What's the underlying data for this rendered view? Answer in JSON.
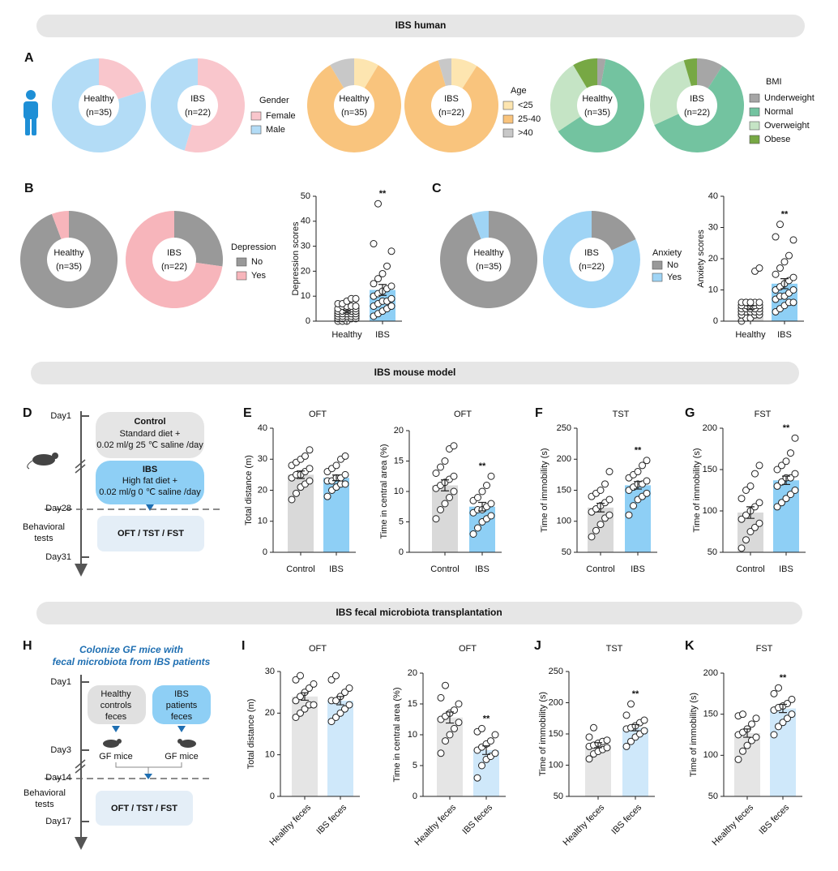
{
  "banners": [
    "IBS human",
    "IBS mouse model",
    "IBS fecal microbiota transplantation"
  ],
  "diagram_d": {
    "panel": "D",
    "day_start": "Day1",
    "control_title": "Control",
    "control_lines": [
      "Standard diet +",
      "0.02 ml/g 25 ℃ saline /day"
    ],
    "ibs_title": "IBS",
    "ibs_lines": [
      "High fat diet +",
      "0.02 ml/g 0 ℃ saline /day"
    ],
    "day_test": "Day28",
    "behavioral": [
      "Behavioral",
      "tests"
    ],
    "tests": "OFT / TST / FST",
    "day_end": "Day31"
  },
  "diagram_h": {
    "panel": "H",
    "title": [
      "Colonize GF mice with",
      "fecal microbiota from IBS patients"
    ],
    "day_start": "Day1",
    "healthy_box": [
      "Healthy",
      "controls",
      "feces"
    ],
    "ibs_box": [
      "IBS",
      "patients",
      "feces"
    ],
    "day_colonize": "Day3",
    "mice": [
      "GF mice",
      "GF mice"
    ],
    "day_test": "Day14",
    "behavioral": [
      "Behavioral",
      "tests"
    ],
    "tests": "OFT / TST / FST",
    "day_end": "Day17"
  },
  "chart_data": [
    {
      "type": "donut",
      "panel": "A",
      "legend_title": "Gender",
      "categories": [
        "Female",
        "Male"
      ],
      "colors": [
        "#f9c6cc",
        "#b3dcf6"
      ],
      "pies": [
        {
          "label": [
            "Healthy",
            "(n=35)"
          ],
          "values": [
            7,
            28
          ]
        },
        {
          "label": [
            "IBS",
            "(n=22)"
          ],
          "values": [
            12,
            10
          ]
        }
      ]
    },
    {
      "type": "donut",
      "legend_title": "Age",
      "categories": [
        "<25",
        "25-40",
        ">40"
      ],
      "colors": [
        "#fde5b0",
        "#f9c47d",
        "#c8c8c8"
      ],
      "pies": [
        {
          "label": [
            "Healthy",
            "(n=35)"
          ],
          "values": [
            3,
            29,
            3
          ]
        },
        {
          "label": [
            "IBS",
            "(n=22)"
          ],
          "values": [
            2,
            19,
            1
          ]
        }
      ]
    },
    {
      "type": "donut",
      "legend_title": "BMI",
      "categories": [
        "Underweight",
        "Normal",
        "Overweight",
        "Obese"
      ],
      "colors": [
        "#a6a6a6",
        "#73c3a0",
        "#c5e4c5",
        "#77a844"
      ],
      "pies": [
        {
          "label": [
            "Healthy",
            "(n=35)"
          ],
          "values": [
            1,
            22,
            9,
            3
          ]
        },
        {
          "label": [
            "IBS",
            "(n=22)"
          ],
          "values": [
            2,
            13,
            6,
            1
          ]
        }
      ]
    },
    {
      "type": "donut",
      "panel": "B",
      "legend_title": "Depression",
      "categories": [
        "No",
        "Yes"
      ],
      "colors": [
        "#999999",
        "#f7b5bb"
      ],
      "pies": [
        {
          "label": [
            "Healthy",
            "(n=35)"
          ],
          "values": [
            33,
            2
          ]
        },
        {
          "label": [
            "IBS",
            "(n=22)"
          ],
          "values": [
            6,
            16
          ]
        }
      ]
    },
    {
      "type": "bar",
      "ylabel": "Depression scores",
      "categories": [
        "Healthy",
        "IBS"
      ],
      "colors": [
        "#d9d9d9",
        "#8ecff5"
      ],
      "values": [
        3.8,
        12.5
      ],
      "errors": [
        0.5,
        2.2
      ],
      "points": [
        [
          0,
          0,
          0,
          1,
          1,
          1,
          1,
          2,
          2,
          2,
          2,
          2,
          3,
          3,
          3,
          3,
          3,
          4,
          4,
          4,
          4,
          4,
          5,
          5,
          5,
          5,
          6,
          6,
          6,
          6,
          7,
          7,
          8,
          9,
          9
        ],
        [
          2,
          3,
          4,
          5,
          6,
          6,
          7,
          8,
          8,
          9,
          10,
          11,
          12,
          13,
          14,
          15,
          17,
          19,
          22,
          28,
          31,
          47
        ]
      ],
      "ylim": [
        0,
        50
      ],
      "yticks": [
        0,
        10,
        20,
        30,
        40,
        50
      ],
      "annotation": "**"
    },
    {
      "type": "donut",
      "panel": "C",
      "legend_title": "Anxiety",
      "categories": [
        "No",
        "Yes"
      ],
      "colors": [
        "#999999",
        "#9fd4f5"
      ],
      "pies": [
        {
          "label": [
            "Healthy",
            "(n=35)"
          ],
          "values": [
            33,
            2
          ]
        },
        {
          "label": [
            "IBS",
            "(n=22)"
          ],
          "values": [
            4,
            18
          ]
        }
      ]
    },
    {
      "type": "bar",
      "ylabel": "Anxiety scores",
      "categories": [
        "Healthy",
        "IBS"
      ],
      "colors": [
        "#d9d9d9",
        "#8ecff5"
      ],
      "values": [
        4.3,
        12
      ],
      "errors": [
        0.6,
        1.6
      ],
      "points": [
        [
          0,
          1,
          1,
          2,
          2,
          2,
          3,
          3,
          3,
          3,
          3,
          4,
          4,
          4,
          4,
          4,
          4,
          4,
          4,
          5,
          5,
          5,
          5,
          5,
          5,
          5,
          6,
          6,
          6,
          6,
          6,
          6,
          6,
          16,
          17
        ],
        [
          3,
          4,
          5,
          6,
          6,
          7,
          8,
          8,
          9,
          10,
          10,
          11,
          12,
          13,
          14,
          15,
          17,
          19,
          21,
          26,
          27,
          31
        ]
      ],
      "ylim": [
        0,
        40
      ],
      "yticks": [
        0,
        10,
        20,
        30,
        40
      ],
      "annotation": "**"
    },
    {
      "type": "bar",
      "panel": "E",
      "title": "OFT",
      "ylabel": "Total distance (m)",
      "categories": [
        "Control",
        "IBS"
      ],
      "colors": [
        "#d9d9d9",
        "#8ecff5"
      ],
      "values": [
        25,
        24
      ],
      "errors": [
        1.2,
        0.9
      ],
      "points": [
        [
          17,
          19,
          21,
          22,
          23,
          24,
          25,
          25,
          26,
          27,
          28,
          29,
          30,
          31,
          33
        ],
        [
          18,
          20,
          21,
          22,
          22,
          23,
          23,
          24,
          24,
          25,
          26,
          27,
          28,
          30,
          31
        ]
      ],
      "ylim": [
        0,
        40
      ],
      "yticks": [
        0,
        10,
        20,
        30,
        40
      ]
    },
    {
      "type": "bar",
      "title": "OFT",
      "ylabel": "Time in central area (%)",
      "categories": [
        "Control",
        "IBS"
      ],
      "colors": [
        "#d9d9d9",
        "#8ecff5"
      ],
      "values": [
        11,
        7.5
      ],
      "errors": [
        0.9,
        0.7
      ],
      "points": [
        [
          5.5,
          7,
          8,
          9,
          10,
          10.5,
          11,
          11.5,
          12,
          12.5,
          13,
          14,
          15,
          17,
          17.5
        ],
        [
          3,
          4,
          5,
          5.5,
          6,
          6.5,
          7,
          7,
          7.5,
          8,
          8.5,
          9,
          10,
          11,
          12.5
        ]
      ],
      "ylim": [
        0,
        20
      ],
      "yticks": [
        0,
        5,
        10,
        15,
        20
      ],
      "annotation": "**"
    },
    {
      "type": "bar",
      "panel": "F",
      "title": "TST",
      "ylabel": "Time of immobility (s)",
      "categories": [
        "Control",
        "IBS"
      ],
      "colors": [
        "#d9d9d9",
        "#8ecff5"
      ],
      "values": [
        122,
        158
      ],
      "errors": [
        7,
        6
      ],
      "points": [
        [
          75,
          85,
          95,
          105,
          110,
          115,
          120,
          125,
          130,
          135,
          140,
          145,
          150,
          160,
          180
        ],
        [
          110,
          125,
          135,
          140,
          145,
          150,
          155,
          160,
          160,
          165,
          170,
          175,
          180,
          190,
          198
        ]
      ],
      "ylim": [
        50,
        250
      ],
      "yticks": [
        50,
        100,
        150,
        200,
        250
      ],
      "annotation": "**"
    },
    {
      "type": "bar",
      "panel": "G",
      "title": "FST",
      "ylabel": "Time of immobility (s)",
      "categories": [
        "Control",
        "IBS"
      ],
      "colors": [
        "#d9d9d9",
        "#8ecff5"
      ],
      "values": [
        98,
        137
      ],
      "errors": [
        7,
        5
      ],
      "points": [
        [
          55,
          65,
          75,
          80,
          85,
          90,
          95,
          100,
          105,
          110,
          115,
          125,
          130,
          145,
          155
        ],
        [
          105,
          110,
          115,
          120,
          125,
          130,
          135,
          140,
          140,
          145,
          150,
          155,
          160,
          170,
          188
        ]
      ],
      "ylim": [
        50,
        200
      ],
      "yticks": [
        50,
        100,
        150,
        200
      ],
      "annotation": "**"
    },
    {
      "type": "bar",
      "panel": "I",
      "title": "OFT",
      "ylabel": "Total distance (m)",
      "categories": [
        "Healthy feces",
        "IBS feces"
      ],
      "colors": [
        "#e5e5e5",
        "#cfe8fa"
      ],
      "values": [
        24,
        23
      ],
      "errors": [
        0.9,
        1
      ],
      "points": [
        [
          19,
          20,
          21,
          22,
          22,
          23,
          24,
          25,
          26,
          27,
          28,
          29
        ],
        [
          18,
          19,
          20,
          21,
          22,
          23,
          23,
          24,
          25,
          26,
          28,
          29
        ]
      ],
      "ylim": [
        0,
        30
      ],
      "yticks": [
        0,
        10,
        20,
        30
      ]
    },
    {
      "type": "bar",
      "title": "OFT",
      "ylabel": "Time in central area (%)",
      "categories": [
        "Healthy feces",
        "IBS feces"
      ],
      "colors": [
        "#e5e5e5",
        "#cfe8fa"
      ],
      "values": [
        12.8,
        7.5
      ],
      "errors": [
        0.9,
        0.7
      ],
      "points": [
        [
          7,
          9,
          10,
          11,
          12,
          12.5,
          13,
          13.5,
          14,
          15,
          16,
          18
        ],
        [
          3,
          5,
          6,
          6.5,
          7,
          7.5,
          8,
          8.5,
          9,
          10,
          10.5,
          11
        ]
      ],
      "ylim": [
        0,
        20
      ],
      "yticks": [
        0,
        5,
        10,
        15,
        20
      ],
      "annotation": "**"
    },
    {
      "type": "bar",
      "panel": "J",
      "title": "TST",
      "ylabel": "Time of immobility (s)",
      "categories": [
        "Healthy feces",
        "IBS feces"
      ],
      "colors": [
        "#e5e5e5",
        "#cfe8fa"
      ],
      "values": [
        132,
        160
      ],
      "errors": [
        4,
        5
      ],
      "points": [
        [
          110,
          118,
          122,
          125,
          128,
          130,
          132,
          135,
          138,
          140,
          145,
          160
        ],
        [
          130,
          138,
          145,
          150,
          155,
          158,
          160,
          163,
          168,
          172,
          180,
          198
        ]
      ],
      "ylim": [
        50,
        250
      ],
      "yticks": [
        50,
        100,
        150,
        200,
        250
      ],
      "annotation": "**"
    },
    {
      "type": "bar",
      "panel": "K",
      "title": "FST",
      "ylabel": "Time of immobility (s)",
      "categories": [
        "Healthy feces",
        "IBS feces"
      ],
      "colors": [
        "#e5e5e5",
        "#cfe8fa"
      ],
      "values": [
        127,
        157
      ],
      "errors": [
        5,
        5
      ],
      "points": [
        [
          95,
          105,
          112,
          118,
          122,
          125,
          128,
          132,
          138,
          145,
          148,
          150
        ],
        [
          125,
          135,
          140,
          145,
          150,
          155,
          158,
          160,
          163,
          168,
          175,
          182
        ]
      ],
      "ylim": [
        50,
        200
      ],
      "yticks": [
        50,
        100,
        150,
        200
      ],
      "annotation": "**"
    }
  ]
}
